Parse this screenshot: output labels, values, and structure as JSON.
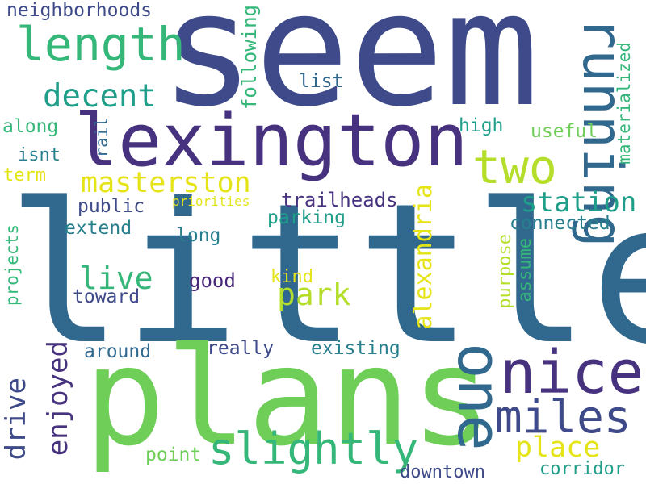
{
  "palette": {
    "dark_purple": "#46327e",
    "indigo": "#3e4a89",
    "blue": "#31688e",
    "teal_blue": "#277f8e",
    "teal": "#1f9e89",
    "green": "#35b779",
    "light_green": "#6ece58",
    "yellow_green": "#b5de2b",
    "yellow": "#e5e419",
    "deep_purple": "#482878"
  },
  "words": {
    "seem": "seem",
    "little": "little",
    "plans": "plans",
    "lexington": "lexington",
    "one": "one",
    "running": "running",
    "nice": "nice",
    "length": "length",
    "two": "two",
    "miles": "miles",
    "slightly": "slightly",
    "alexandria": "alexandria",
    "masterston": "masterston",
    "decent": "decent",
    "station": "station",
    "park": "park",
    "place": "place",
    "enjoyed": "enjoyed",
    "live": "live",
    "drive": "drive",
    "neighborhoods": "neighborhoods",
    "following": "following",
    "materialized": "materialized",
    "trailheads": "trailheads",
    "connected": "connected",
    "parking": "parking",
    "public": "public",
    "extend": "extend",
    "long": "long",
    "list": "list",
    "high": "high",
    "useful": "useful",
    "along": "along",
    "isnt": "isnt",
    "term": "term",
    "rail": "rail",
    "priorities": "priorities",
    "good": "good",
    "kind": "kind",
    "toward": "toward",
    "projects": "projects",
    "purpose": "purpose",
    "assume": "assume",
    "around": "around",
    "really": "really",
    "existing": "existing",
    "point": "point",
    "downtown": "downtown",
    "corridor": "corridor"
  }
}
